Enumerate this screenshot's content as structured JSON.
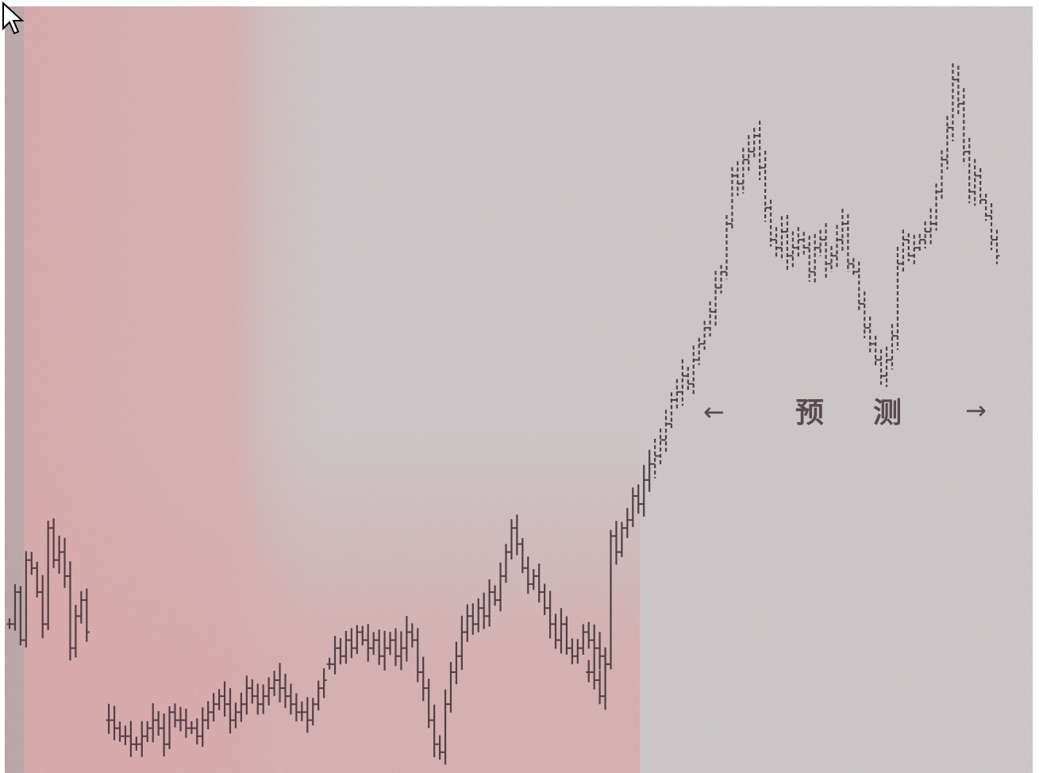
{
  "colors": {
    "page_background": "#ffffff",
    "plot_background": "#c9c3c4",
    "pink_tint": "#d6a5a7",
    "grey_tint": "#a9a3a5",
    "bar_color": "#4f3f46"
  },
  "caption": "",
  "chart_data": {
    "type": "ohlc",
    "xlabel": "",
    "ylabel": "",
    "title": "",
    "forecast_annotation": {
      "left_arrow": "←",
      "text_1": "预",
      "text_2": "测",
      "right_arrow": "→"
    },
    "grid": false,
    "legend": "none",
    "segments": [
      {
        "name": "",
        "start_index": 0,
        "y": [
          18,
          22,
          16,
          26,
          25,
          22,
          18,
          30,
          26,
          27,
          24,
          15,
          19,
          21,
          17
        ]
      },
      {
        "name": "",
        "start_index": 18,
        "y": [
          6,
          5,
          4,
          4,
          3,
          3,
          4,
          5,
          6,
          5,
          3,
          7,
          6,
          6,
          5,
          5,
          4,
          6,
          7,
          8,
          9,
          8,
          6,
          7,
          8,
          10,
          9,
          8,
          9,
          10,
          11,
          10,
          9,
          8,
          7,
          7,
          6,
          8,
          10,
          11
        ]
      },
      {
        "name": "",
        "start_index": 58,
        "y": [
          13,
          15,
          14,
          16,
          15,
          17,
          16,
          15,
          16,
          14,
          15,
          16,
          14,
          15,
          17,
          16,
          12,
          10,
          6,
          3,
          2,
          8,
          12,
          14,
          17,
          19,
          18,
          20,
          19,
          22,
          21,
          24,
          27,
          30,
          28,
          25,
          23,
          24,
          22,
          20,
          18,
          16,
          18,
          15,
          14,
          15,
          17,
          16,
          15,
          14,
          13
        ]
      },
      {
        "name": "",
        "start_index": 105,
        "y": [
          12,
          11,
          9,
          13,
          29,
          27,
          30,
          31,
          34,
          33,
          36,
          38,
          39,
          41,
          43,
          46,
          47,
          49,
          48,
          51,
          53,
          55,
          57,
          60,
          62,
          68,
          74,
          73,
          76,
          77,
          79,
          75,
          70,
          66,
          65,
          67,
          64,
          65,
          66,
          65,
          62,
          65,
          66,
          63,
          64,
          66,
          68,
          63,
          62,
          58,
          55,
          53,
          51,
          49,
          51,
          54,
          63,
          66,
          64,
          65,
          66,
          67,
          68,
          72,
          76,
          80,
          86,
          83,
          77,
          72,
          74,
          71,
          69,
          66,
          64
        ]
      }
    ],
    "forecast_region": {
      "from_index": 117,
      "to_index": 179
    },
    "ylim": [
      0,
      90
    ]
  }
}
